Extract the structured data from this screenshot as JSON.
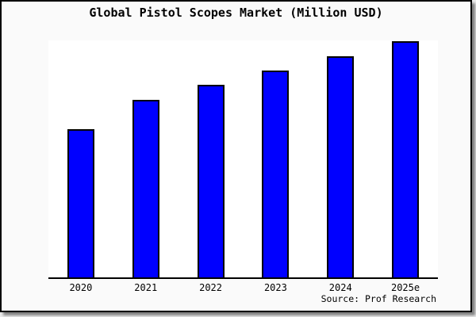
{
  "chart_data": {
    "type": "bar",
    "title": "Global Pistol Scopes Market (Million USD)",
    "categories": [
      "2020",
      "2021",
      "2022",
      "2023",
      "2024",
      "2025e"
    ],
    "values": [
      62.7,
      75.0,
      81.7,
      87.7,
      93.7,
      100.0
    ],
    "values_note": "relative heights, normalized to 2025e = 100; no y-axis scale is shown in the figure",
    "xlabel": "",
    "ylabel": "",
    "ylim": [
      0,
      100
    ],
    "grid": false,
    "legend": false,
    "source_note": "Source: Prof Research",
    "colors": {
      "bar_fill": "#0000ff",
      "bar_border": "#000000",
      "axis_line": "#000000",
      "plot_background": "#ffffff",
      "figure_background": "#fafafa",
      "frame_border": "#000000",
      "text": "#000000"
    }
  }
}
